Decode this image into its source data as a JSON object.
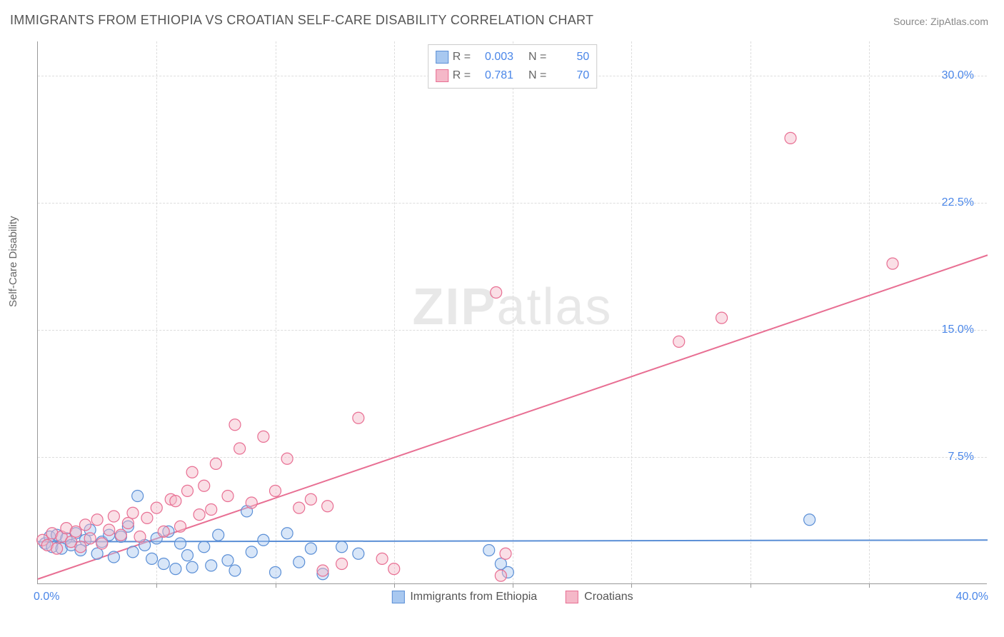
{
  "title": "IMMIGRANTS FROM ETHIOPIA VS CROATIAN SELF-CARE DISABILITY CORRELATION CHART",
  "source": "Source: ZipAtlas.com",
  "watermark_a": "ZIP",
  "watermark_b": "atlas",
  "ylabel": "Self-Care Disability",
  "chart": {
    "type": "scatter",
    "xlim": [
      0,
      40
    ],
    "ylim": [
      0,
      32
    ],
    "x_tick_interval": 5,
    "y_ticks": [
      7.5,
      15.0,
      22.5,
      30.0
    ],
    "y_tick_labels": [
      "7.5%",
      "15.0%",
      "22.5%",
      "30.0%"
    ],
    "x_label_min": "0.0%",
    "x_label_max": "40.0%",
    "background_color": "#ffffff",
    "grid_color": "#dddddd",
    "axis_color": "#999999",
    "tick_label_color": "#4a86e8",
    "marker_radius": 8,
    "series": [
      {
        "name": "Immigrants from Ethiopia",
        "key": "ethiopia",
        "fill": "#a8c8f0",
        "stroke": "#5b8fd6",
        "R": "0.003",
        "N": "50",
        "trend": {
          "y_at_x0": 2.5,
          "y_at_xmax": 2.6
        },
        "points": [
          [
            0.3,
            2.4
          ],
          [
            0.5,
            2.8
          ],
          [
            0.6,
            2.2
          ],
          [
            0.8,
            2.9
          ],
          [
            1.0,
            2.1
          ],
          [
            1.2,
            2.7
          ],
          [
            1.4,
            2.3
          ],
          [
            1.6,
            3.0
          ],
          [
            1.8,
            2.0
          ],
          [
            2.0,
            2.6
          ],
          [
            2.2,
            3.2
          ],
          [
            2.5,
            1.8
          ],
          [
            2.7,
            2.5
          ],
          [
            3.0,
            2.9
          ],
          [
            3.2,
            1.6
          ],
          [
            3.5,
            2.8
          ],
          [
            3.8,
            3.4
          ],
          [
            4.0,
            1.9
          ],
          [
            4.2,
            5.2
          ],
          [
            4.5,
            2.3
          ],
          [
            4.8,
            1.5
          ],
          [
            5.0,
            2.7
          ],
          [
            5.3,
            1.2
          ],
          [
            5.5,
            3.1
          ],
          [
            5.8,
            0.9
          ],
          [
            6.0,
            2.4
          ],
          [
            6.3,
            1.7
          ],
          [
            6.5,
            1.0
          ],
          [
            7.0,
            2.2
          ],
          [
            7.3,
            1.1
          ],
          [
            7.6,
            2.9
          ],
          [
            8.0,
            1.4
          ],
          [
            8.3,
            0.8
          ],
          [
            8.8,
            4.3
          ],
          [
            9.0,
            1.9
          ],
          [
            9.5,
            2.6
          ],
          [
            10.0,
            0.7
          ],
          [
            10.5,
            3.0
          ],
          [
            11.0,
            1.3
          ],
          [
            11.5,
            2.1
          ],
          [
            12.0,
            0.6
          ],
          [
            12.8,
            2.2
          ],
          [
            13.5,
            1.8
          ],
          [
            19.0,
            2.0
          ],
          [
            19.5,
            1.2
          ],
          [
            19.8,
            0.7
          ],
          [
            32.5,
            3.8
          ]
        ]
      },
      {
        "name": "Croatians",
        "key": "croatians",
        "fill": "#f5b8c8",
        "stroke": "#e86f93",
        "R": "0.781",
        "N": "70",
        "trend": {
          "y_at_x0": 0.3,
          "y_at_xmax": 19.4
        },
        "points": [
          [
            0.2,
            2.6
          ],
          [
            0.4,
            2.3
          ],
          [
            0.6,
            3.0
          ],
          [
            0.8,
            2.1
          ],
          [
            1.0,
            2.8
          ],
          [
            1.2,
            3.3
          ],
          [
            1.4,
            2.5
          ],
          [
            1.6,
            3.1
          ],
          [
            1.8,
            2.2
          ],
          [
            2.0,
            3.5
          ],
          [
            2.2,
            2.7
          ],
          [
            2.5,
            3.8
          ],
          [
            2.7,
            2.4
          ],
          [
            3.0,
            3.2
          ],
          [
            3.2,
            4.0
          ],
          [
            3.5,
            2.9
          ],
          [
            3.8,
            3.6
          ],
          [
            4.0,
            4.2
          ],
          [
            4.3,
            2.8
          ],
          [
            4.6,
            3.9
          ],
          [
            5.0,
            4.5
          ],
          [
            5.3,
            3.1
          ],
          [
            5.6,
            5.0
          ],
          [
            5.8,
            4.9
          ],
          [
            6.0,
            3.4
          ],
          [
            6.3,
            5.5
          ],
          [
            6.5,
            6.6
          ],
          [
            6.8,
            4.1
          ],
          [
            7.0,
            5.8
          ],
          [
            7.3,
            4.4
          ],
          [
            7.5,
            7.1
          ],
          [
            8.0,
            5.2
          ],
          [
            8.3,
            9.4
          ],
          [
            8.5,
            8.0
          ],
          [
            9.0,
            4.8
          ],
          [
            9.5,
            8.7
          ],
          [
            10.0,
            5.5
          ],
          [
            10.5,
            7.4
          ],
          [
            11.0,
            4.5
          ],
          [
            11.5,
            5.0
          ],
          [
            12.0,
            0.8
          ],
          [
            12.2,
            4.6
          ],
          [
            12.8,
            1.2
          ],
          [
            13.5,
            9.8
          ],
          [
            14.5,
            1.5
          ],
          [
            15.0,
            0.9
          ],
          [
            19.3,
            17.2
          ],
          [
            19.5,
            0.5
          ],
          [
            19.7,
            1.8
          ],
          [
            27.0,
            14.3
          ],
          [
            28.8,
            15.7
          ],
          [
            31.7,
            26.3
          ],
          [
            36.0,
            18.9
          ]
        ]
      }
    ]
  },
  "statbox": {
    "r_label": "R =",
    "n_label": "N ="
  },
  "legend": {
    "items": [
      {
        "label": "Immigrants from Ethiopia",
        "fill": "#a8c8f0",
        "stroke": "#5b8fd6"
      },
      {
        "label": "Croatians",
        "fill": "#f5b8c8",
        "stroke": "#e86f93"
      }
    ]
  }
}
